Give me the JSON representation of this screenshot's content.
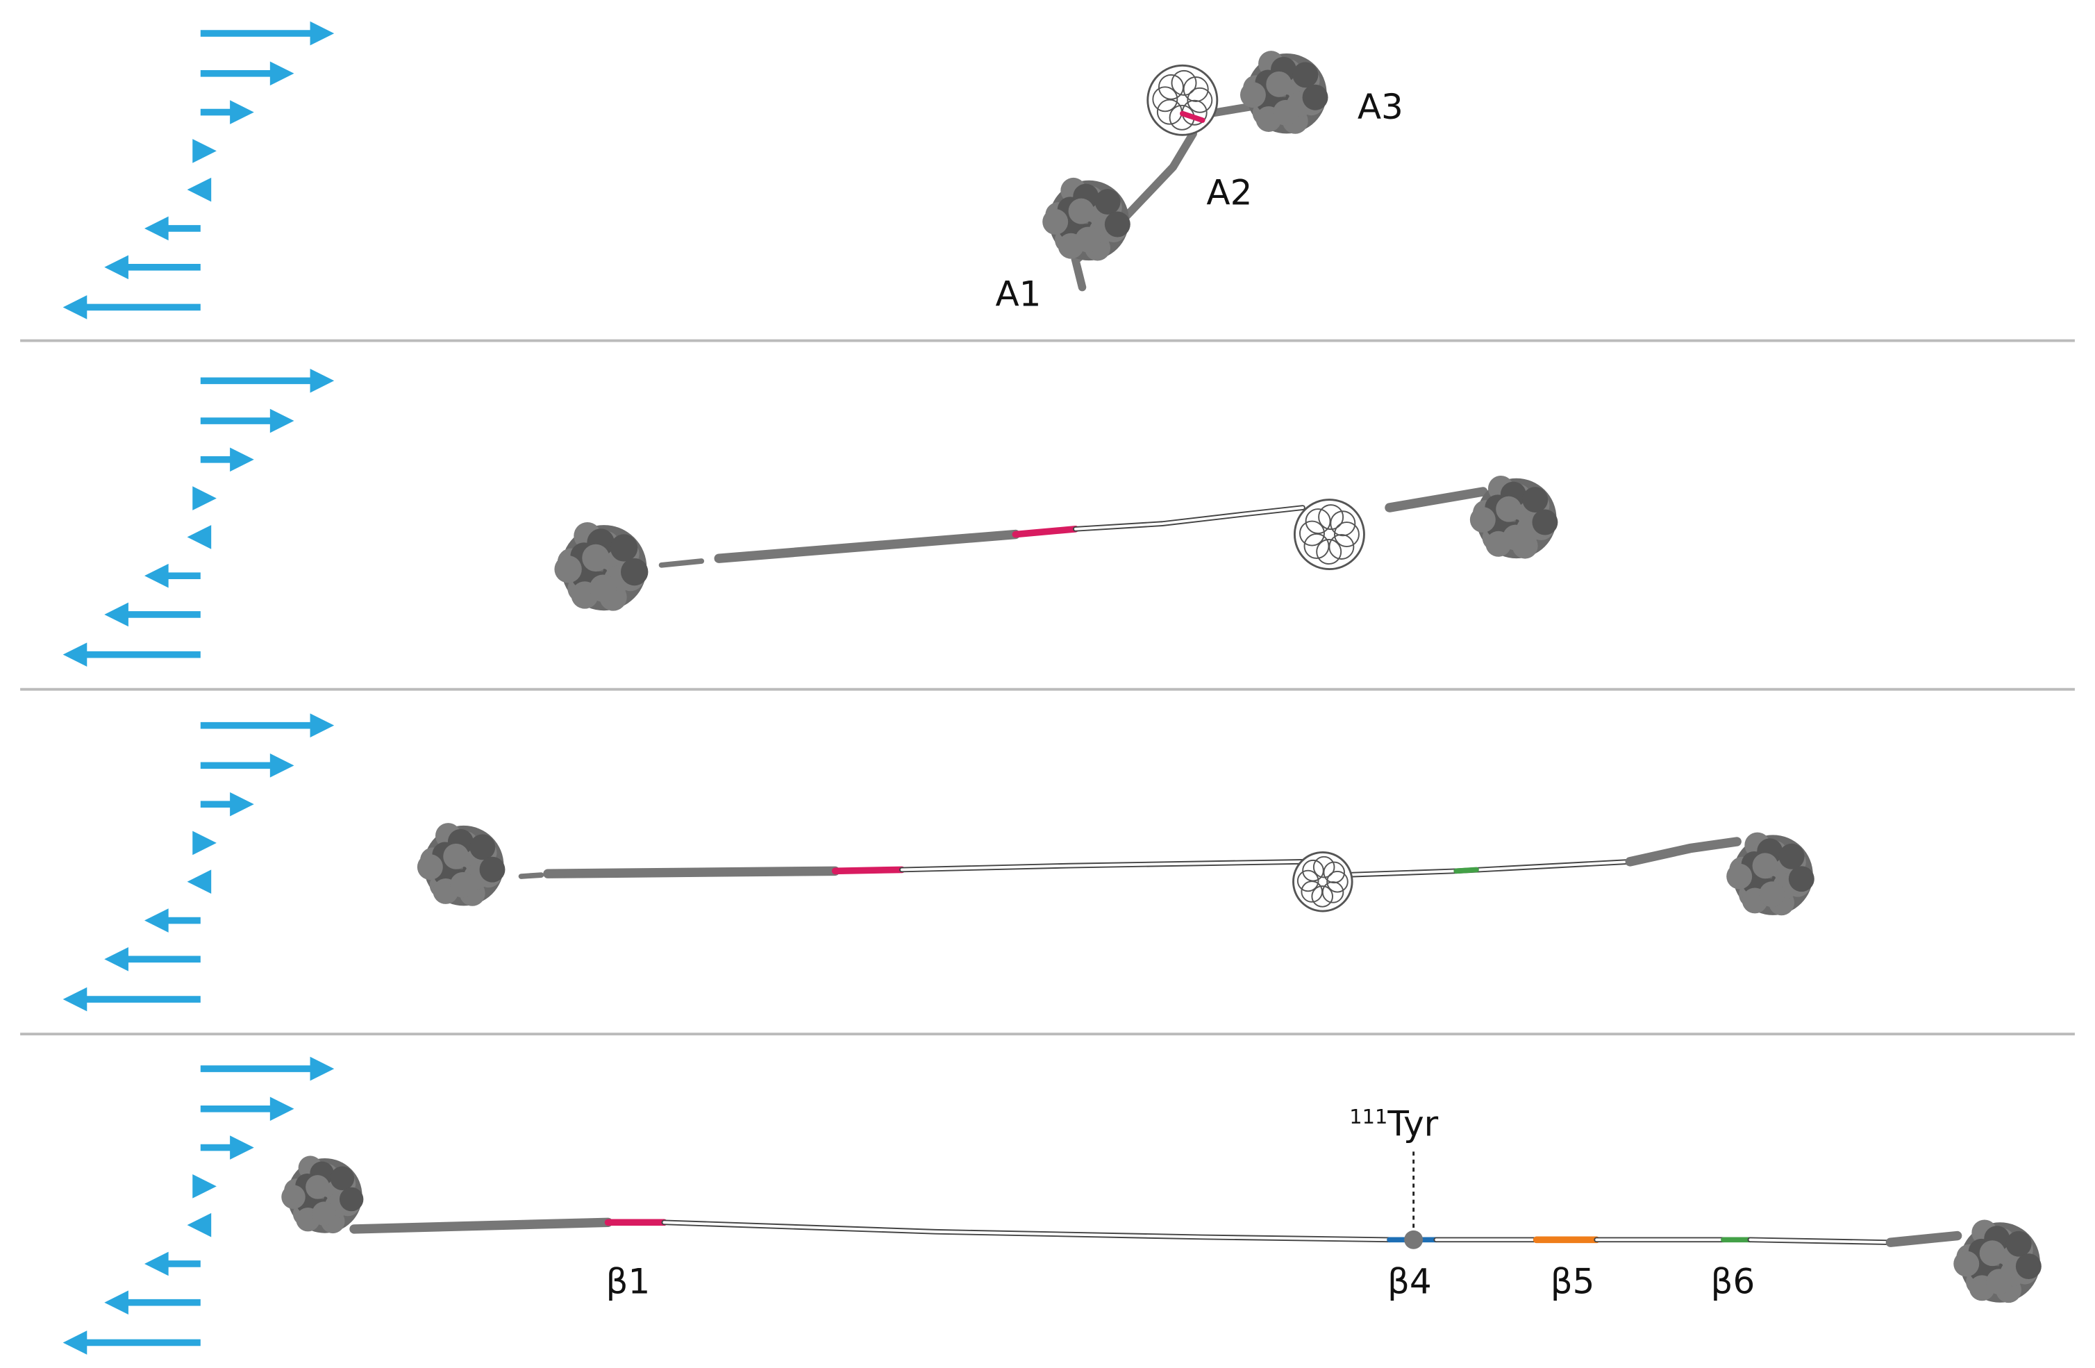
{
  "panel_1": {
    "domain_labels": [
      "A3",
      "A2",
      "A1"
    ]
  },
  "panel_4": {
    "strand_labels": [
      "β1",
      "β4",
      "β5",
      "β6"
    ],
    "residue_label": {
      "number": "111",
      "residue": "Tyr"
    }
  }
}
